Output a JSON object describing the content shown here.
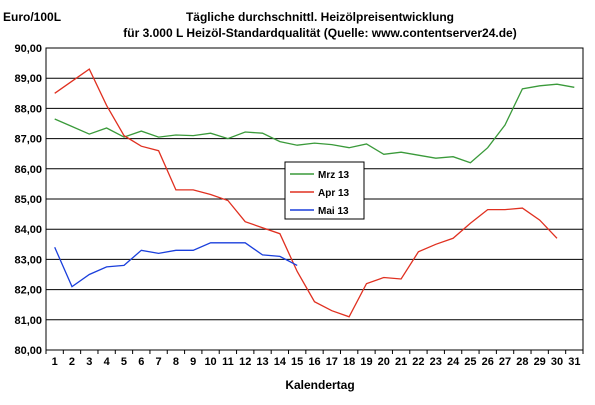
{
  "chart_data": {
    "type": "line",
    "title_line1": "Tägliche durchschnittl. Heizölpreisentwicklung",
    "title_line2": "für 3.000 L Heizöl-Standardqualität (Quelle: www.contentserver24.de)",
    "ylabel": "Euro/100L",
    "xlabel": "Kalendertag",
    "ylim": [
      80,
      90
    ],
    "yticks": [
      "80,00",
      "81,00",
      "82,00",
      "83,00",
      "84,00",
      "85,00",
      "86,00",
      "87,00",
      "88,00",
      "89,00",
      "90,00"
    ],
    "x": [
      1,
      2,
      3,
      4,
      5,
      6,
      7,
      8,
      9,
      10,
      11,
      12,
      13,
      14,
      15,
      16,
      17,
      18,
      19,
      20,
      21,
      22,
      23,
      24,
      25,
      26,
      27,
      28,
      29,
      30,
      31
    ],
    "grid": true,
    "legend_position": "center",
    "series": [
      {
        "name": "Mrz 13",
        "color": "#3a9a3a",
        "values": [
          87.65,
          87.4,
          87.15,
          87.35,
          87.05,
          87.25,
          87.05,
          87.12,
          87.1,
          87.18,
          87.0,
          87.22,
          87.18,
          86.9,
          86.78,
          86.85,
          86.8,
          86.7,
          86.82,
          86.48,
          86.55,
          86.45,
          86.35,
          86.4,
          86.2,
          86.7,
          87.45,
          88.65,
          88.75,
          88.8,
          88.7
        ]
      },
      {
        "name": "Apr 13",
        "color": "#e03020",
        "values": [
          88.5,
          88.9,
          89.3,
          88.1,
          87.1,
          86.75,
          86.6,
          85.3,
          85.3,
          85.15,
          84.95,
          84.25,
          84.05,
          83.85,
          82.6,
          81.6,
          81.3,
          81.1,
          82.2,
          82.4,
          82.35,
          83.25,
          83.5,
          83.7,
          84.2,
          84.65,
          84.65,
          84.7,
          84.3,
          83.7,
          null
        ]
      },
      {
        "name": "Mai 13",
        "color": "#1a3fdc",
        "values": [
          83.4,
          82.1,
          82.5,
          82.75,
          82.8,
          83.3,
          83.2,
          83.3,
          83.3,
          83.55,
          83.55,
          83.55,
          83.15,
          83.1,
          82.8,
          null,
          null,
          null,
          null,
          null,
          null,
          null,
          null,
          null,
          null,
          null,
          null,
          null,
          null,
          null,
          null
        ]
      }
    ]
  }
}
